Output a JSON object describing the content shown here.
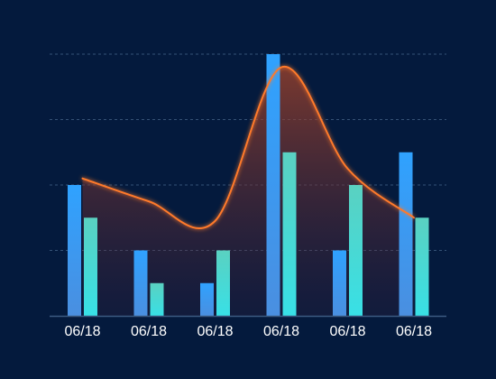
{
  "chart_data": {
    "type": "bar",
    "categories": [
      "06/18",
      "06/18",
      "06/18",
      "06/18",
      "06/18",
      "06/18"
    ],
    "series": [
      {
        "type": "bar",
        "values": [
          4,
          2,
          1,
          8,
          2,
          5
        ]
      },
      {
        "type": "bar",
        "values": [
          3,
          1,
          2,
          5,
          4,
          3
        ]
      },
      {
        "type": "line",
        "smooth": true,
        "area": true,
        "values": [
          4.2,
          3.5,
          2.9,
          7.6,
          4.5,
          3.0
        ]
      }
    ],
    "ylim": [
      0,
      8
    ],
    "grid": true,
    "colors": {
      "background": "#041a3d",
      "bar_a_top": "#2fa2ff",
      "bar_a_bottom": "#4a8fe0",
      "bar_b_top": "#5ad1c1",
      "bar_b_bottom": "#38e0e6",
      "line": "#ff7a2a",
      "area": "#8a3a2a",
      "grid": "#4a6a8f",
      "axis": "#3a5a80",
      "text": "#ffffff"
    }
  }
}
